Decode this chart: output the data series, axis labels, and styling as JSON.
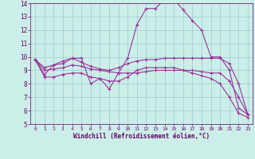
{
  "xlabel": "Windchill (Refroidissement éolien,°C)",
  "xlim": [
    -0.5,
    23.5
  ],
  "ylim": [
    5,
    14
  ],
  "yticks": [
    5,
    6,
    7,
    8,
    9,
    10,
    11,
    12,
    13,
    14
  ],
  "xticks": [
    0,
    1,
    2,
    3,
    4,
    5,
    6,
    7,
    8,
    9,
    10,
    11,
    12,
    13,
    14,
    15,
    16,
    17,
    18,
    19,
    20,
    21,
    22,
    23
  ],
  "background_color": "#cceee8",
  "line_color": "#993399",
  "grid_color": "#99cccc",
  "lines": [
    [
      9.8,
      8.7,
      9.4,
      9.5,
      9.9,
      9.9,
      8.0,
      8.4,
      7.6,
      8.8,
      9.9,
      12.4,
      13.6,
      13.6,
      14.3,
      14.3,
      13.5,
      12.7,
      12.0,
      10.0,
      10.0,
      9.0,
      6.2,
      5.7
    ],
    [
      9.8,
      9.2,
      9.4,
      9.7,
      9.9,
      9.6,
      9.3,
      9.1,
      9.0,
      9.2,
      9.5,
      9.7,
      9.8,
      9.8,
      9.9,
      9.9,
      9.9,
      9.9,
      9.9,
      9.9,
      9.9,
      9.5,
      8.0,
      5.7
    ],
    [
      9.8,
      9.0,
      9.1,
      9.2,
      9.4,
      9.3,
      9.1,
      9.0,
      8.9,
      8.8,
      8.8,
      8.8,
      8.9,
      9.0,
      9.0,
      9.0,
      9.0,
      9.0,
      8.9,
      8.8,
      8.8,
      8.2,
      7.0,
      5.7
    ],
    [
      9.8,
      8.5,
      8.5,
      8.7,
      8.8,
      8.8,
      8.5,
      8.4,
      8.2,
      8.2,
      8.5,
      9.0,
      9.2,
      9.2,
      9.2,
      9.2,
      9.0,
      8.8,
      8.6,
      8.4,
      8.0,
      7.0,
      5.8,
      5.5
    ]
  ]
}
